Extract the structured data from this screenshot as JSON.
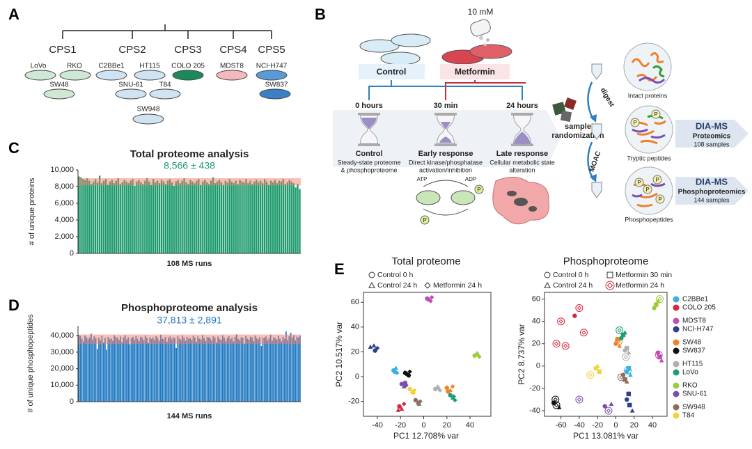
{
  "panel_a": {
    "letter": "A",
    "groups": [
      {
        "name": "CPS1",
        "lines": [
          "LoVo",
          "RKO",
          "SW48"
        ]
      },
      {
        "name": "CPS2",
        "lines": [
          "C2BBe1",
          "HT115",
          "SNU-61",
          "T84",
          "SW948"
        ]
      },
      {
        "name": "CPS3",
        "lines": [
          "COLO 205"
        ]
      },
      {
        "name": "CPS4",
        "lines": [
          "MDST8"
        ]
      },
      {
        "name": "CPS5",
        "lines": [
          "NCI-H747",
          "SW837"
        ]
      }
    ]
  },
  "panel_b": {
    "letter": "B",
    "dose": "10 mM",
    "control": "Control",
    "metformin": "Metformin",
    "timepoints": [
      "0 hours",
      "30 min",
      "24 hours"
    ],
    "conditions": [
      {
        "title": "Control",
        "lines": [
          "Steady-state proteome",
          "& phosphoproteome"
        ]
      },
      {
        "title": "Early response",
        "lines": [
          "Direct kinase/phosphatase",
          "activation/inhibition"
        ]
      },
      {
        "title": "Late response",
        "lines": [
          "Cellular metabolic state",
          "alteration"
        ]
      }
    ],
    "atp": "ATP",
    "adp": "ADP",
    "phospho": "P",
    "randomization": [
      "sample",
      "randomization"
    ],
    "digest": "digest",
    "moac": "MOAC",
    "fractions": [
      "Intact proteins",
      "Tryptic peptides",
      "Phosphopeptides"
    ],
    "outputs": [
      {
        "method": "DIA-MS",
        "name": "Proteomics",
        "samples": "108 samples"
      },
      {
        "method": "DIA-MS",
        "name": "Phosphoproteomics",
        "samples": "144 samples"
      }
    ]
  },
  "cell_lines": [
    {
      "name": "C2BBe1",
      "color": "#3ab0e2"
    },
    {
      "name": "COLO 205",
      "color": "#d7263d"
    },
    {
      "name": "MDST8",
      "color": "#c24bb5"
    },
    {
      "name": "NCI-H747",
      "color": "#2e3f8f"
    },
    {
      "name": "SW48",
      "color": "#f0832a"
    },
    {
      "name": "SW837",
      "color": "#111111"
    },
    {
      "name": "HT115",
      "color": "#b0b0b0"
    },
    {
      "name": "LoVo",
      "color": "#1a9e77"
    },
    {
      "name": "RKO",
      "color": "#9ccc3c"
    },
    {
      "name": "SNU-61",
      "color": "#7b4fb0"
    },
    {
      "name": "SW948",
      "color": "#8c6e5d"
    },
    {
      "name": "T84",
      "color": "#f4d03f"
    }
  ],
  "chart_data": [
    {
      "type": "bar",
      "panel_letter": "C",
      "title": "Total proteome analysis",
      "subtitle": "8,566 ± 438",
      "subtitle_color": "#1d9a6c",
      "y_label": "# of unique proteins",
      "x_label": "108 MS runs",
      "color": "#1d9a6c",
      "band": [
        8128,
        9004
      ],
      "band_color": "#f08070",
      "ylim": [
        0,
        10000
      ],
      "yticks": [
        0,
        {
          "value": 2000,
          "label": "2,000"
        },
        {
          "value": 4000,
          "label": "4,000"
        },
        {
          "value": 6000,
          "label": "6,000"
        },
        {
          "value": 8000,
          "label": "8,000"
        },
        {
          "value": 10000,
          "label": "10,000"
        }
      ],
      "values": [
        9200,
        9100,
        8900,
        8800,
        9000,
        8700,
        8300,
        8600,
        8900,
        8500,
        9300,
        8400,
        8700,
        8900,
        8200,
        8600,
        8800,
        8400,
        8700,
        9000,
        8300,
        8500,
        8800,
        8600,
        8400,
        8700,
        8900,
        8100,
        8600,
        8800,
        8500,
        8300,
        8700,
        9000,
        8600,
        8200,
        8900,
        8500,
        8700,
        8400,
        8800,
        8600,
        8300,
        8700,
        8900,
        8500,
        8100,
        8600,
        8800,
        8400,
        8700,
        9000,
        8500,
        8300,
        8800,
        8600,
        8400,
        8700,
        8900,
        8200,
        8600,
        8800,
        8500,
        8300,
        8700,
        9100,
        8400,
        8600,
        8800,
        8500,
        8200,
        8700,
        8500,
        8900,
        8600,
        8400,
        8700,
        8300,
        8800,
        8600,
        8500,
        8900,
        8400,
        8700,
        8300,
        8600,
        8800,
        8500,
        8700,
        8400,
        8900,
        8600,
        8200,
        8700,
        8500,
        8800,
        8400,
        8700,
        8600,
        8900,
        8300,
        8500,
        8800,
        8600,
        8400,
        7900,
        8300,
        7700
      ]
    },
    {
      "type": "bar",
      "panel_letter": "D",
      "title": "Phosphoproteome analysis",
      "subtitle": "37,813 ± 2,891",
      "subtitle_color": "#1f78c1",
      "y_label": "# of unique phosphopeptides",
      "x_label": "144 MS runs",
      "color": "#1f78c1",
      "band": [
        34922,
        40704
      ],
      "band_color": "#f08070",
      "ylim": [
        0,
        46000
      ],
      "yticks": [
        0,
        {
          "value": 10000,
          "label": "10,000"
        },
        {
          "value": 20000,
          "label": "20,000"
        },
        {
          "value": 30000,
          "label": "30,000"
        },
        {
          "value": 40000,
          "label": "40,000"
        }
      ],
      "values": [
        40500,
        39800,
        38200,
        36500,
        40100,
        39000,
        37800,
        38900,
        41200,
        37500,
        39600,
        38400,
        32000,
        38800,
        37200,
        39900,
        35800,
        38600,
        31500,
        39200,
        37900,
        38300,
        36900,
        40200,
        39100,
        38700,
        37400,
        39500,
        36200,
        38900,
        40300,
        37700,
        39000,
        34800,
        38500,
        39300,
        37600,
        39800,
        38100,
        36700,
        39400,
        38800,
        37200,
        40000,
        38600,
        35500,
        39100,
        38000,
        38900,
        37300,
        39700,
        38400,
        36800,
        40600,
        38200,
        37900,
        39200,
        36400,
        38700,
        39500,
        37800,
        39100,
        38500,
        32500,
        39800,
        38300,
        37600,
        40100,
        38900,
        36900,
        39300,
        38100,
        38600,
        37400,
        39900,
        38800,
        36300,
        39500,
        38200,
        37700,
        40400,
        38500,
        36800,
        39200,
        39000,
        38300,
        37100,
        39600,
        38700,
        35900,
        39400,
        38000,
        37500,
        40200,
        38800,
        36600,
        38400,
        39700,
        37900,
        38600,
        36500,
        39300,
        40800,
        38100,
        37300,
        39000,
        38700,
        35200,
        39800,
        38200,
        37600,
        39400,
        38900,
        36700,
        40000,
        38500,
        37800,
        39100,
        33800,
        38600,
        38700,
        39500,
        37200,
        38300,
        40600,
        36900,
        39000,
        38400,
        37700,
        39900,
        38100,
        36500,
        39300,
        38000,
        42500,
        37400,
        39600,
        41800,
        38800,
        40300,
        37100,
        39400,
        38900,
        40000
      ]
    },
    {
      "type": "scatter",
      "panel_letter": "E",
      "title": "Total proteome",
      "x_label": "PC1 12.708% var",
      "y_label": "PC2 10.517% var",
      "xlim": [
        -52,
        58
      ],
      "ylim": [
        -32,
        68
      ],
      "xticks": [
        -40,
        -20,
        0,
        20,
        40
      ],
      "yticks": [
        -20,
        0,
        20,
        40,
        60
      ],
      "shape_legend": [
        {
          "label": "Control 0 h",
          "shape": "circle"
        },
        {
          "label": "Control 24 h",
          "shape": "triangle"
        },
        {
          "label": "Metformin 24 h",
          "shape": "diamond"
        }
      ],
      "series": [
        {
          "cell_line": 0,
          "x": [
            -26,
            -24,
            -23,
            -25
          ],
          "y": [
            5,
            7,
            3,
            4
          ],
          "shape": [
            0,
            1,
            2,
            0
          ]
        },
        {
          "cell_line": 1,
          "x": [
            -21,
            -19,
            -17,
            -22
          ],
          "y": [
            -24,
            -26,
            -22,
            -27
          ],
          "shape": [
            0,
            1,
            2,
            1
          ]
        },
        {
          "cell_line": 2,
          "x": [
            3,
            5,
            7,
            6
          ],
          "y": [
            63,
            62,
            64,
            61
          ],
          "shape": [
            0,
            1,
            2,
            2
          ]
        },
        {
          "cell_line": 3,
          "x": [
            -46,
            -43,
            -40,
            -42
          ],
          "y": [
            24,
            25,
            23,
            21
          ],
          "shape": [
            1,
            1,
            2,
            0
          ]
        },
        {
          "cell_line": 4,
          "x": [
            20,
            23,
            25,
            21
          ],
          "y": [
            -9,
            -11,
            -8,
            -12
          ],
          "shape": [
            0,
            1,
            2,
            0
          ]
        },
        {
          "cell_line": 5,
          "x": [
            -16,
            -14,
            -12,
            -13
          ],
          "y": [
            3,
            2,
            4,
            1
          ],
          "shape": [
            0,
            1,
            2,
            0
          ]
        },
        {
          "cell_line": 6,
          "x": [
            10,
            12,
            14,
            13
          ],
          "y": [
            -10,
            -8,
            -11,
            -9
          ],
          "shape": [
            0,
            1,
            2,
            1
          ]
        },
        {
          "cell_line": 7,
          "x": [
            23,
            25,
            27,
            26
          ],
          "y": [
            -15,
            -17,
            -19,
            -16
          ],
          "shape": [
            0,
            1,
            2,
            2
          ]
        },
        {
          "cell_line": 8,
          "x": [
            44,
            46,
            48,
            47
          ],
          "y": [
            17,
            19,
            16,
            18
          ],
          "shape": [
            0,
            1,
            2,
            1
          ]
        },
        {
          "cell_line": 9,
          "x": [
            -19,
            -17,
            -15,
            -16
          ],
          "y": [
            -6,
            -8,
            -7,
            -5
          ],
          "shape": [
            0,
            1,
            2,
            0
          ]
        },
        {
          "cell_line": 10,
          "x": [
            -7,
            -5,
            -3,
            -4
          ],
          "y": [
            -19,
            -21,
            -20,
            -22
          ],
          "shape": [
            0,
            1,
            2,
            1
          ]
        },
        {
          "cell_line": 11,
          "x": [
            -12,
            -10,
            -8,
            -9
          ],
          "y": [
            -10,
            -12,
            -11,
            -13
          ],
          "shape": [
            0,
            1,
            2,
            0
          ]
        }
      ]
    },
    {
      "type": "scatter",
      "title": "Phosphoproteome",
      "x_label": "PC1 13.081% var",
      "y_label": "PC2 8.737% var",
      "xlim": [
        -78,
        56
      ],
      "ylim": [
        -45,
        66
      ],
      "xticks": [
        -60,
        -40,
        -20,
        0,
        20,
        40
      ],
      "yticks": [
        -40,
        -20,
        0,
        20,
        40,
        60
      ],
      "shape_legend": [
        {
          "label": "Control 0 h",
          "shape": "circle"
        },
        {
          "label": "Control 24 h",
          "shape": "triangle"
        },
        {
          "label": "Metformin 30 min",
          "shape": "square"
        },
        {
          "label": "Metformin 24 h",
          "shape": "diamond-circle"
        }
      ],
      "series": [
        {
          "cell_line": 0,
          "x": [
            12,
            14,
            16,
            13
          ],
          "y": [
            -5,
            -2,
            -8,
            -4
          ],
          "shape": [
            0,
            2,
            1,
            3
          ]
        },
        {
          "cell_line": 1,
          "x": [
            -60,
            -55,
            -40,
            -45,
            -65,
            -35
          ],
          "y": [
            40,
            18,
            52,
            45,
            20,
            30
          ],
          "shape": [
            3,
            3,
            3,
            0,
            3,
            3
          ]
        },
        {
          "cell_line": 2,
          "x": [
            46,
            48,
            50,
            47
          ],
          "y": [
            12,
            8,
            5,
            10
          ],
          "shape": [
            0,
            2,
            1,
            3
          ]
        },
        {
          "cell_line": 3,
          "x": [
            12,
            15,
            18,
            14
          ],
          "y": [
            -30,
            -35,
            -40,
            -25
          ],
          "shape": [
            0,
            2,
            1,
            2
          ]
        },
        {
          "cell_line": 4,
          "x": [
            0,
            2,
            4,
            3
          ],
          "y": [
            20,
            24,
            18,
            22
          ],
          "shape": [
            0,
            2,
            1,
            3
          ]
        },
        {
          "cell_line": 5,
          "x": [
            -68,
            -65,
            -62,
            -66
          ],
          "y": [
            -33,
            -35,
            -37,
            -30
          ],
          "shape": [
            0,
            3,
            1,
            3
          ]
        },
        {
          "cell_line": 6,
          "x": [
            10,
            12,
            14,
            11
          ],
          "y": [
            14,
            16,
            12,
            8
          ],
          "shape": [
            0,
            2,
            1,
            3
          ]
        },
        {
          "cell_line": 7,
          "x": [
            6,
            8,
            10,
            4
          ],
          "y": [
            25,
            28,
            30,
            32
          ],
          "shape": [
            0,
            2,
            1,
            3
          ]
        },
        {
          "cell_line": 8,
          "x": [
            42,
            44,
            46,
            48
          ],
          "y": [
            52,
            55,
            58,
            60
          ],
          "shape": [
            0,
            2,
            1,
            3
          ]
        },
        {
          "cell_line": 9,
          "x": [
            -12,
            -8,
            -5,
            -40
          ],
          "y": [
            -36,
            -40,
            -34,
            -30
          ],
          "shape": [
            0,
            3,
            1,
            3
          ]
        },
        {
          "cell_line": 10,
          "x": [
            8,
            10,
            12,
            6
          ],
          "y": [
            -8,
            -12,
            -14,
            -10
          ],
          "shape": [
            0,
            2,
            1,
            3
          ]
        },
        {
          "cell_line": 11,
          "x": [
            -22,
            -18,
            -20,
            -28
          ],
          "y": [
            -2,
            -5,
            0,
            -8
          ],
          "shape": [
            0,
            2,
            1,
            3
          ]
        }
      ]
    }
  ]
}
